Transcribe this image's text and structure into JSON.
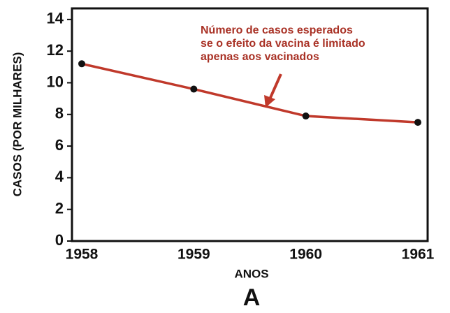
{
  "chart_data": {
    "type": "line",
    "categories": [
      "1958",
      "1959",
      "1960",
      "1961"
    ],
    "series": [
      {
        "name": null,
        "color": "#c0392b",
        "values": [
          11.2,
          9.6,
          7.9,
          7.5
        ]
      }
    ],
    "xlabel": "ANOS",
    "ylabel": "CASOS (POR MILHARES)",
    "ylim": [
      0,
      14.7
    ],
    "yticks": [
      0,
      2,
      4,
      6,
      8,
      10,
      12,
      14
    ],
    "annotation": [
      "Número de casos esperados",
      "se o efeito da vacina é limitado",
      "apenas aos vacinados"
    ],
    "panel_label": "A"
  }
}
